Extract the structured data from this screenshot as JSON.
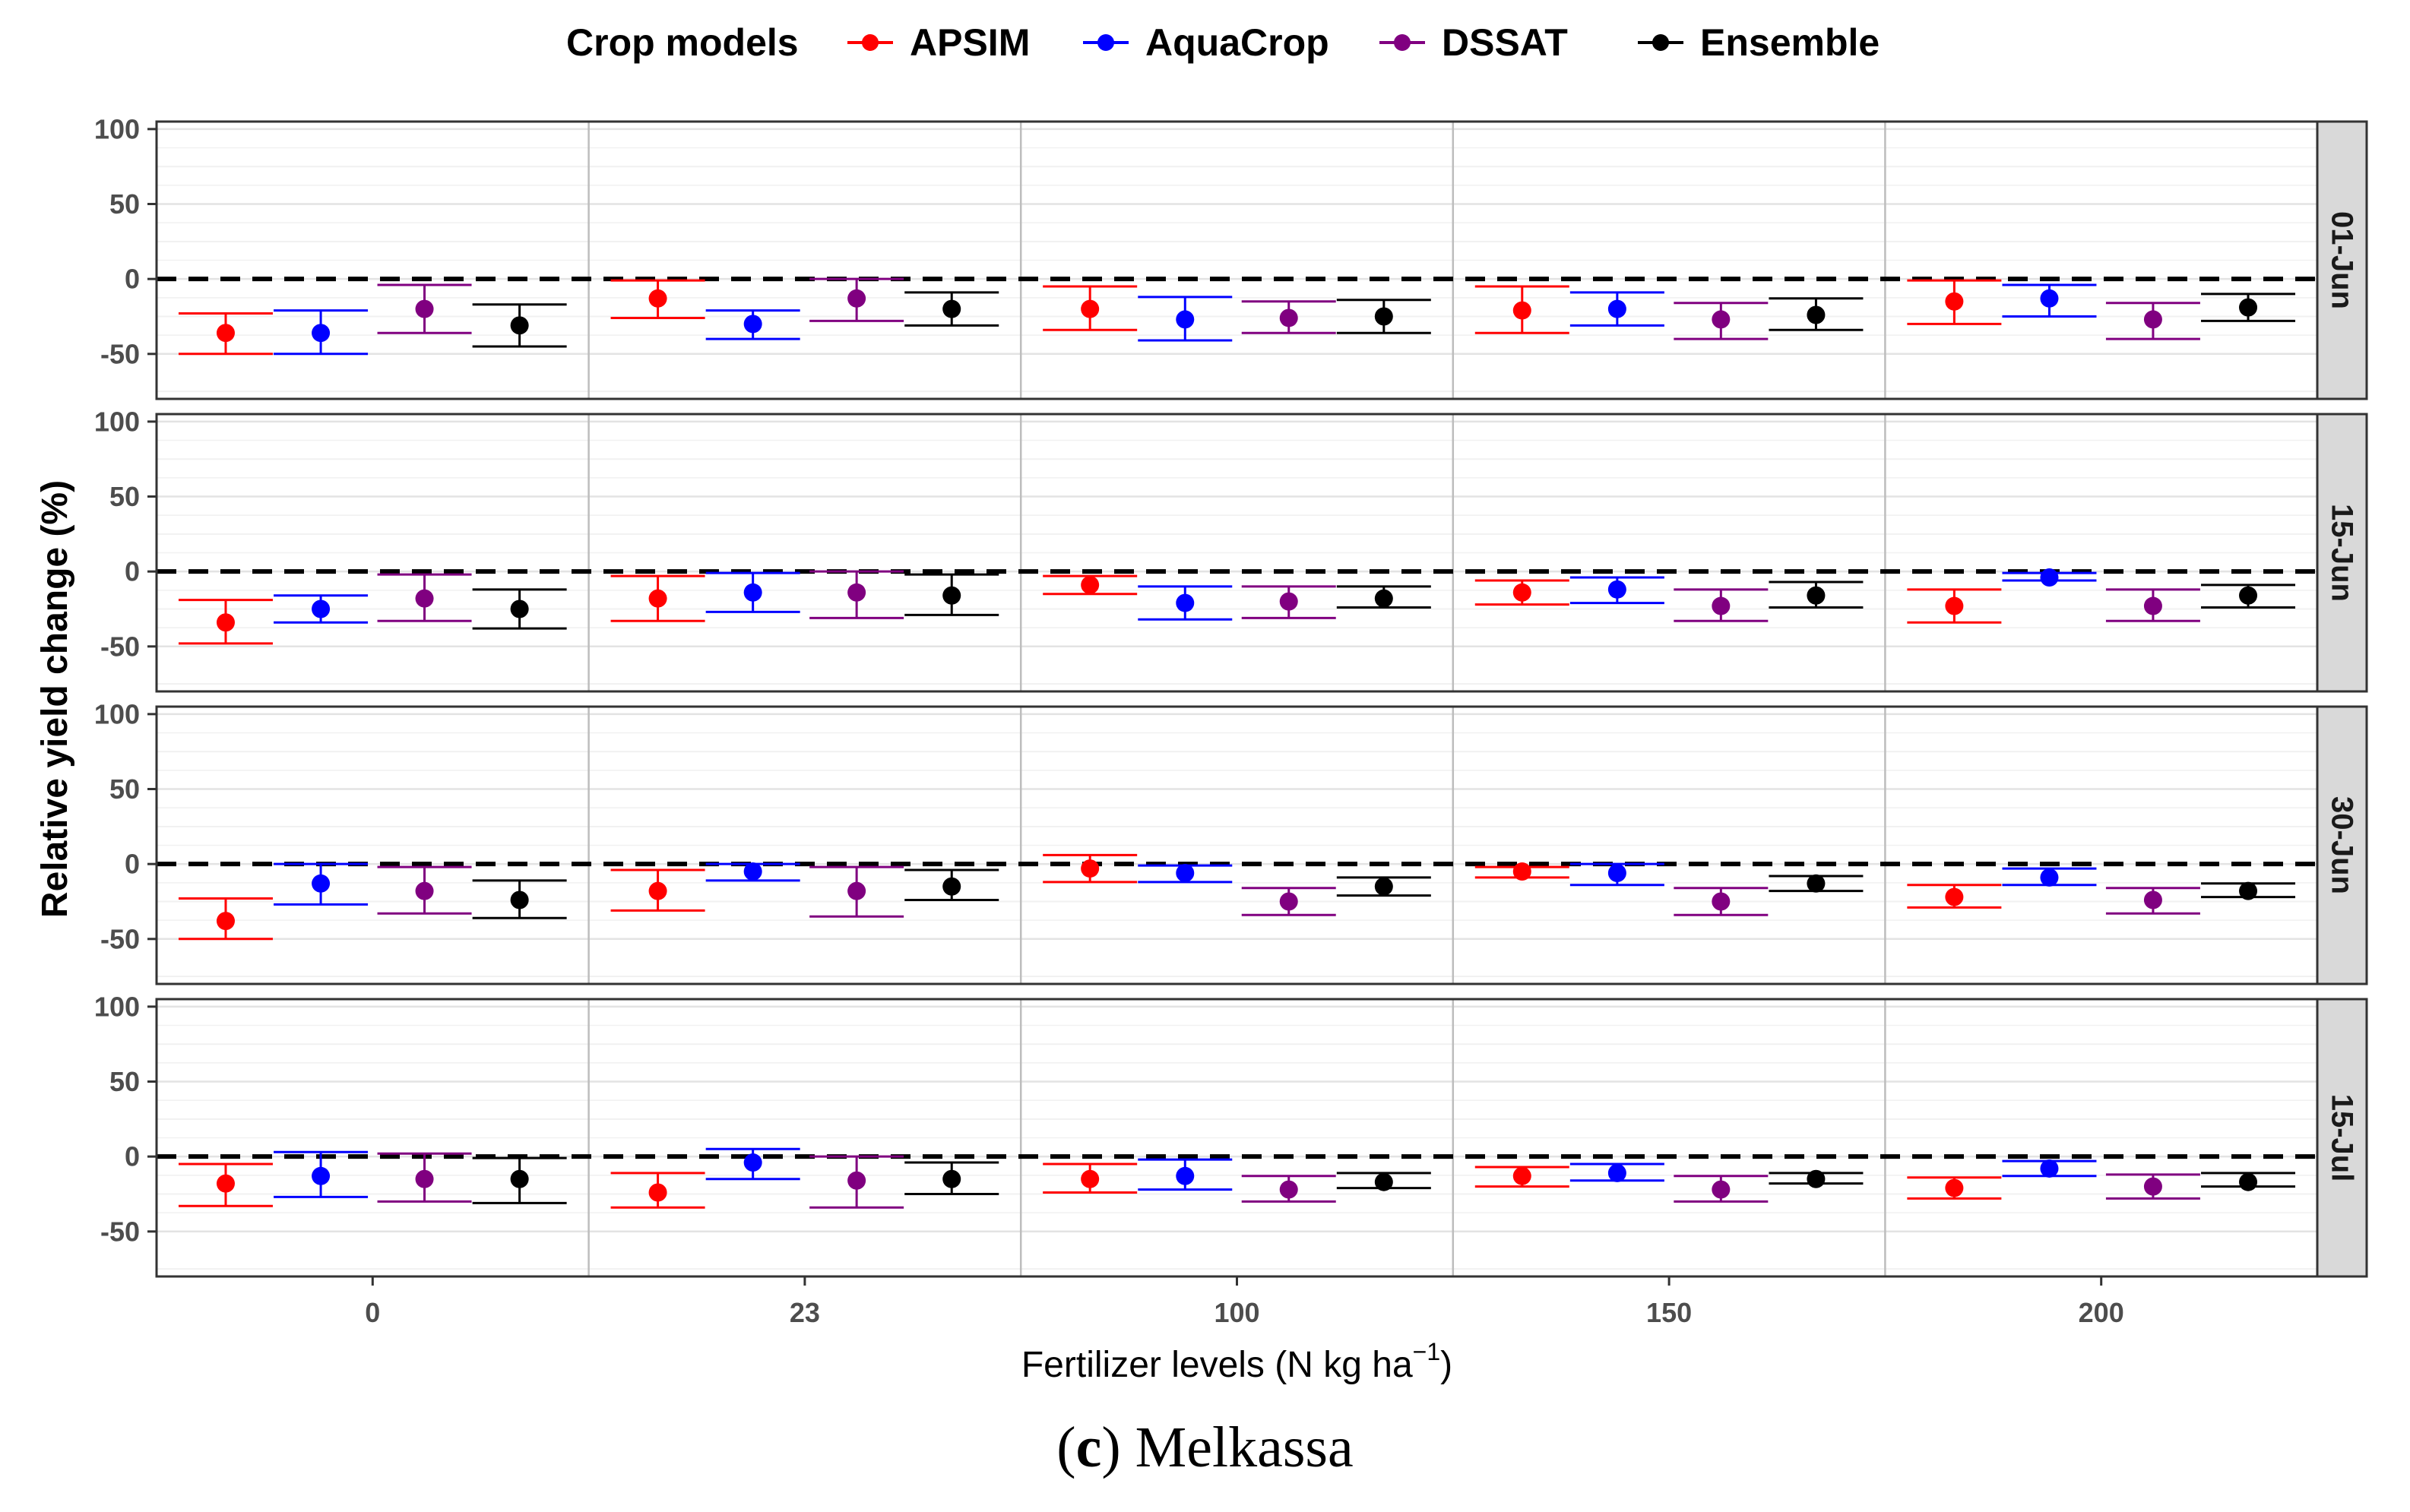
{
  "chart_data": {
    "type": "scatter",
    "subtype": "point-errorbar-facets",
    "legend": {
      "title": "Crop models",
      "placement": "top",
      "items": [
        "APSIM",
        "AquaCrop",
        "DSSAT",
        "Ensemble"
      ]
    },
    "colors": {
      "APSIM": "#ff0000",
      "AquaCrop": "#0000ff",
      "DSSAT": "#800080",
      "Ensemble": "#000000",
      "strip_bg": "#d9d9d9",
      "grid_major": "#e3e3e3",
      "grid_minor": "#f1f1f1",
      "panel_sep": "#bdbdbd"
    },
    "ylabel": "Relative yield change (%)",
    "xlabel_main": "Fertilizer levels (N kg ha",
    "xlabel_sup": "−1",
    "xlabel_tail": ")",
    "categories": [
      "0",
      "23",
      "100",
      "150",
      "200"
    ],
    "yticks": [
      "100",
      "50",
      "0",
      "-50"
    ],
    "ytick_values": [
      100,
      50,
      0,
      -50
    ],
    "ylim": [
      -80,
      105
    ],
    "reference_line": 0,
    "grid": true,
    "facets": [
      {
        "label": "01-Jun",
        "series": [
          {
            "name": "APSIM",
            "mean": [
              -36,
              -13,
              -20,
              -21,
              -15
            ],
            "low": [
              -50,
              -26,
              -34,
              -36,
              -30
            ],
            "high": [
              -23,
              -1,
              -5,
              -5,
              -1
            ]
          },
          {
            "name": "AquaCrop",
            "mean": [
              -36,
              -30,
              -27,
              -20,
              -13
            ],
            "low": [
              -50,
              -40,
              -41,
              -31,
              -25
            ],
            "high": [
              -21,
              -21,
              -12,
              -9,
              -4
            ]
          },
          {
            "name": "DSSAT",
            "mean": [
              -20,
              -13,
              -26,
              -27,
              -27
            ],
            "low": [
              -36,
              -28,
              -36,
              -40,
              -40
            ],
            "high": [
              -4,
              0,
              -15,
              -16,
              -16
            ]
          },
          {
            "name": "Ensemble",
            "mean": [
              -31,
              -20,
              -25,
              -24,
              -19
            ],
            "low": [
              -45,
              -31,
              -36,
              -34,
              -28
            ],
            "high": [
              -17,
              -9,
              -14,
              -13,
              -10
            ]
          }
        ]
      },
      {
        "label": "15-Jun",
        "series": [
          {
            "name": "APSIM",
            "mean": [
              -34,
              -18,
              -9,
              -14,
              -23
            ],
            "low": [
              -48,
              -33,
              -15,
              -22,
              -34
            ],
            "high": [
              -19,
              -3,
              -3,
              -6,
              -12
            ]
          },
          {
            "name": "AquaCrop",
            "mean": [
              -25,
              -14,
              -21,
              -12,
              -4
            ],
            "low": [
              -34,
              -27,
              -32,
              -21,
              -6
            ],
            "high": [
              -16,
              -1,
              -10,
              -4,
              -1
            ]
          },
          {
            "name": "DSSAT",
            "mean": [
              -18,
              -14,
              -20,
              -23,
              -23
            ],
            "low": [
              -33,
              -31,
              -31,
              -33,
              -33
            ],
            "high": [
              -2,
              0,
              -10,
              -12,
              -12
            ]
          },
          {
            "name": "Ensemble",
            "mean": [
              -25,
              -16,
              -18,
              -16,
              -16
            ],
            "low": [
              -38,
              -29,
              -24,
              -24,
              -24
            ],
            "high": [
              -12,
              -2,
              -10,
              -7,
              -9
            ]
          }
        ]
      },
      {
        "label": "30-Jun",
        "series": [
          {
            "name": "APSIM",
            "mean": [
              -38,
              -18,
              -3,
              -5,
              -22
            ],
            "low": [
              -50,
              -31,
              -12,
              -9,
              -29
            ],
            "high": [
              -23,
              -4,
              6,
              -2,
              -14
            ]
          },
          {
            "name": "AquaCrop",
            "mean": [
              -13,
              -5,
              -6,
              -6,
              -9
            ],
            "low": [
              -27,
              -11,
              -12,
              -14,
              -14
            ],
            "high": [
              0,
              0,
              -1,
              0,
              -3
            ]
          },
          {
            "name": "DSSAT",
            "mean": [
              -18,
              -18,
              -25,
              -25,
              -24
            ],
            "low": [
              -33,
              -35,
              -34,
              -34,
              -33
            ],
            "high": [
              -2,
              -2,
              -16,
              -16,
              -16
            ]
          },
          {
            "name": "Ensemble",
            "mean": [
              -24,
              -15,
              -15,
              -13,
              -18
            ],
            "low": [
              -36,
              -24,
              -21,
              -18,
              -22
            ],
            "high": [
              -11,
              -4,
              -9,
              -8,
              -13
            ]
          }
        ]
      },
      {
        "label": "15-Jul",
        "series": [
          {
            "name": "APSIM",
            "mean": [
              -18,
              -24,
              -15,
              -13,
              -21
            ],
            "low": [
              -33,
              -34,
              -24,
              -20,
              -28
            ],
            "high": [
              -5,
              -11,
              -5,
              -7,
              -14
            ]
          },
          {
            "name": "AquaCrop",
            "mean": [
              -13,
              -4,
              -13,
              -11,
              -8
            ],
            "low": [
              -27,
              -15,
              -22,
              -16,
              -13
            ],
            "high": [
              3,
              5,
              -2,
              -5,
              -3
            ]
          },
          {
            "name": "DSSAT",
            "mean": [
              -15,
              -16,
              -22,
              -22,
              -20
            ],
            "low": [
              -30,
              -34,
              -30,
              -30,
              -28
            ],
            "high": [
              2,
              0,
              -13,
              -13,
              -12
            ]
          },
          {
            "name": "Ensemble",
            "mean": [
              -15,
              -15,
              -17,
              -15,
              -17
            ],
            "low": [
              -31,
              -25,
              -21,
              -18,
              -20
            ],
            "high": [
              -1,
              -4,
              -11,
              -11,
              -11
            ]
          }
        ]
      }
    ]
  },
  "caption": {
    "open": "(",
    "letter": "c",
    "close": ")",
    "text": " Melkassa"
  }
}
